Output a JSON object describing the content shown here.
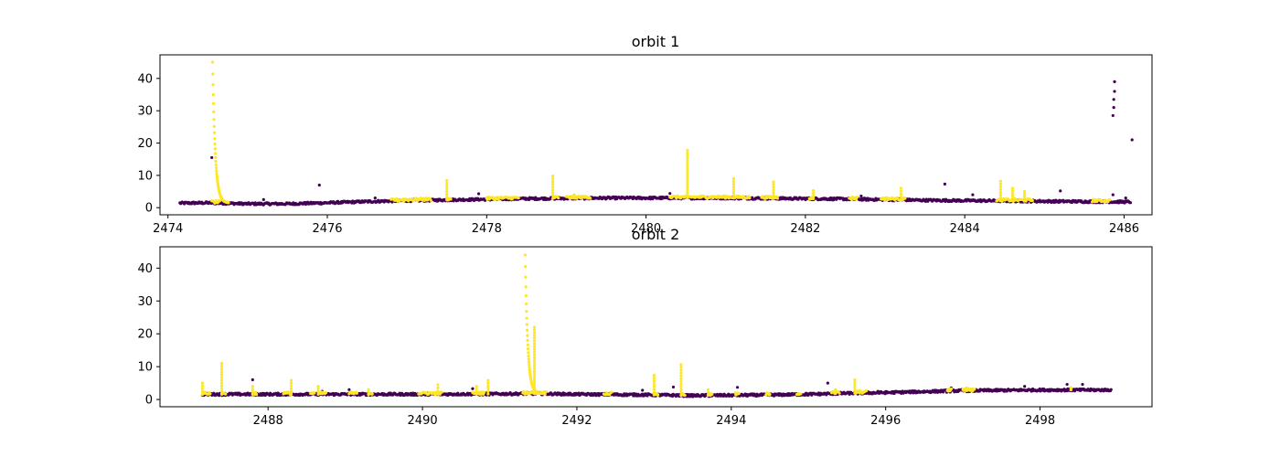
{
  "colors": {
    "flagged": "#fde725",
    "normal": "#440154",
    "background": "#ffffff",
    "axes": "#000000"
  },
  "chart_data": [
    {
      "type": "scatter",
      "title": "orbit 1",
      "xlabel": "",
      "ylabel": "",
      "xlim": [
        2473.9,
        2486.35
      ],
      "ylim": [
        -2.2,
        47.3
      ],
      "xticks": [
        2474,
        2476,
        2478,
        2480,
        2482,
        2484,
        2486
      ],
      "xtick_labels": [
        "2474",
        "2476",
        "2478",
        "2480",
        "2482",
        "2484",
        "2486"
      ],
      "yticks": [
        0,
        10,
        20,
        30,
        40
      ],
      "ytick_labels": [
        "0",
        "10",
        "20",
        "30",
        "40"
      ],
      "grid": false,
      "series": [
        {
          "color_key": "normal",
          "baseline_x": [
            2474.15,
            2474.5,
            2475.0,
            2475.5,
            2476.0,
            2476.5,
            2477.0,
            2477.5,
            2478.0,
            2478.5,
            2479.0,
            2479.5,
            2480.0,
            2480.5,
            2481.0,
            2481.5,
            2482.0,
            2482.5,
            2483.0,
            2483.5,
            2484.0,
            2484.5,
            2485.0,
            2485.5,
            2486.08
          ],
          "baseline_y": [
            1.4,
            1.5,
            1.2,
            1.2,
            1.5,
            1.9,
            2.2,
            2.4,
            2.6,
            2.8,
            2.9,
            3.0,
            3.0,
            3.0,
            3.0,
            2.9,
            2.8,
            2.7,
            2.5,
            2.3,
            2.2,
            2.1,
            2.0,
            1.9,
            1.8
          ],
          "points": [
            [
              2474.55,
              15.5
            ],
            [
              2475.2,
              2.5
            ],
            [
              2475.9,
              7.0
            ],
            [
              2476.6,
              3.0
            ],
            [
              2477.9,
              4.3
            ],
            [
              2480.3,
              4.4
            ],
            [
              2482.7,
              3.6
            ],
            [
              2483.75,
              7.3
            ],
            [
              2484.1,
              4.0
            ],
            [
              2485.2,
              5.2
            ],
            [
              2485.86,
              28.5
            ],
            [
              2485.87,
              31.0
            ],
            [
              2485.87,
              33.5
            ],
            [
              2485.88,
              36.0
            ],
            [
              2485.88,
              39.0
            ],
            [
              2485.86,
              4.0
            ],
            [
              2486.1,
              21.0
            ],
            [
              2486.02,
              3.0
            ]
          ]
        },
        {
          "color_key": "flagged",
          "segments": [
            [
              2474.55,
              2474.65
            ],
            [
              2476.8,
              2477.3
            ],
            [
              2477.5,
              2477.55
            ],
            [
              2478.0,
              2478.4
            ],
            [
              2478.85,
              2478.9
            ],
            [
              2479.0,
              2479.3
            ],
            [
              2480.3,
              2481.3
            ],
            [
              2481.45,
              2481.65
            ],
            [
              2482.05,
              2482.1
            ],
            [
              2482.55,
              2482.65
            ],
            [
              2482.95,
              2483.25
            ],
            [
              2484.4,
              2484.85
            ],
            [
              2485.6,
              2485.82
            ]
          ],
          "spike_x": 2474.56,
          "spike_peak": 45.0,
          "points": [
            [
              2477.5,
              8.4
            ],
            [
              2478.83,
              9.8
            ],
            [
              2480.52,
              17.8
            ],
            [
              2481.1,
              9.0
            ],
            [
              2481.6,
              8.0
            ],
            [
              2483.2,
              6.0
            ],
            [
              2484.45,
              8.2
            ],
            [
              2484.6,
              6.0
            ],
            [
              2484.75,
              5.0
            ],
            [
              2482.1,
              5.3
            ],
            [
              2479.1,
              4.0
            ]
          ]
        }
      ]
    },
    {
      "type": "scatter",
      "title": "orbit 2",
      "xlabel": "",
      "ylabel": "",
      "xlim": [
        2486.6,
        2499.45
      ],
      "ylim": [
        -2.2,
        46.5
      ],
      "xticks": [
        2488,
        2490,
        2492,
        2494,
        2496,
        2498
      ],
      "xtick_labels": [
        "2488",
        "2490",
        "2492",
        "2494",
        "2496",
        "2498"
      ],
      "yticks": [
        0,
        10,
        20,
        30,
        40
      ],
      "ytick_labels": [
        "0",
        "10",
        "20",
        "30",
        "40"
      ],
      "grid": false,
      "series": [
        {
          "color_key": "normal",
          "baseline_x": [
            2487.15,
            2488.0,
            2489.0,
            2490.0,
            2491.0,
            2491.5,
            2492.0,
            2492.5,
            2493.0,
            2493.5,
            2494.0,
            2494.5,
            2495.0,
            2495.5,
            2496.0,
            2496.5,
            2497.0,
            2497.5,
            2498.0,
            2498.5,
            2498.92
          ],
          "baseline_y": [
            1.6,
            1.6,
            1.6,
            1.6,
            1.7,
            1.8,
            1.6,
            1.5,
            1.4,
            1.2,
            1.3,
            1.4,
            1.6,
            1.9,
            2.1,
            2.4,
            2.7,
            2.8,
            2.9,
            2.9,
            2.9
          ],
          "points": [
            [
              2487.8,
              6.0
            ],
            [
              2488.7,
              2.5
            ],
            [
              2489.05,
              3.0
            ],
            [
              2490.65,
              3.3
            ],
            [
              2491.9,
              1.9
            ],
            [
              2492.85,
              2.8
            ],
            [
              2493.25,
              3.8
            ],
            [
              2494.08,
              3.7
            ],
            [
              2495.25,
              5.0
            ],
            [
              2495.9,
              2.5
            ],
            [
              2497.8,
              4.0
            ],
            [
              2498.35,
              4.6
            ],
            [
              2498.55,
              4.6
            ],
            [
              2496.85,
              3.5
            ],
            [
              2487.5,
              1.9
            ]
          ]
        },
        {
          "color_key": "flagged",
          "segments": [
            [
              2487.15,
              2487.25
            ],
            [
              2487.4,
              2487.45
            ],
            [
              2487.8,
              2487.85
            ],
            [
              2488.2,
              2488.3
            ],
            [
              2488.55,
              2488.6
            ],
            [
              2488.65,
              2488.75
            ],
            [
              2489.05,
              2489.15
            ],
            [
              2489.3,
              2489.35
            ],
            [
              2489.95,
              2490.25
            ],
            [
              2490.65,
              2490.8
            ],
            [
              2491.3,
              2491.6
            ],
            [
              2492.35,
              2492.45
            ],
            [
              2493.0,
              2493.05
            ],
            [
              2493.35,
              2493.4
            ],
            [
              2493.7,
              2493.75
            ],
            [
              2494.05,
              2494.1
            ],
            [
              2494.45,
              2494.5
            ],
            [
              2494.85,
              2494.9
            ],
            [
              2495.3,
              2495.4
            ],
            [
              2495.6,
              2495.75
            ],
            [
              2496.8,
              2496.85
            ],
            [
              2497.0,
              2497.15
            ]
          ],
          "spike_x": 2491.33,
          "spike_peak": 44.0,
          "points": [
            [
              2487.4,
              11.0
            ],
            [
              2487.15,
              5.0
            ],
            [
              2487.8,
              4.0
            ],
            [
              2488.3,
              5.8
            ],
            [
              2488.65,
              4.0
            ],
            [
              2489.3,
              3.0
            ],
            [
              2490.2,
              4.5
            ],
            [
              2490.7,
              4.0
            ],
            [
              2490.85,
              5.8
            ],
            [
              2493.0,
              7.4
            ],
            [
              2493.35,
              10.6
            ],
            [
              2493.7,
              3.0
            ],
            [
              2495.35,
              3.0
            ],
            [
              2495.6,
              6.0
            ],
            [
              2497.05,
              3.5
            ],
            [
              2498.4,
              3.6
            ],
            [
              2491.45,
              22.0
            ]
          ]
        }
      ]
    }
  ]
}
